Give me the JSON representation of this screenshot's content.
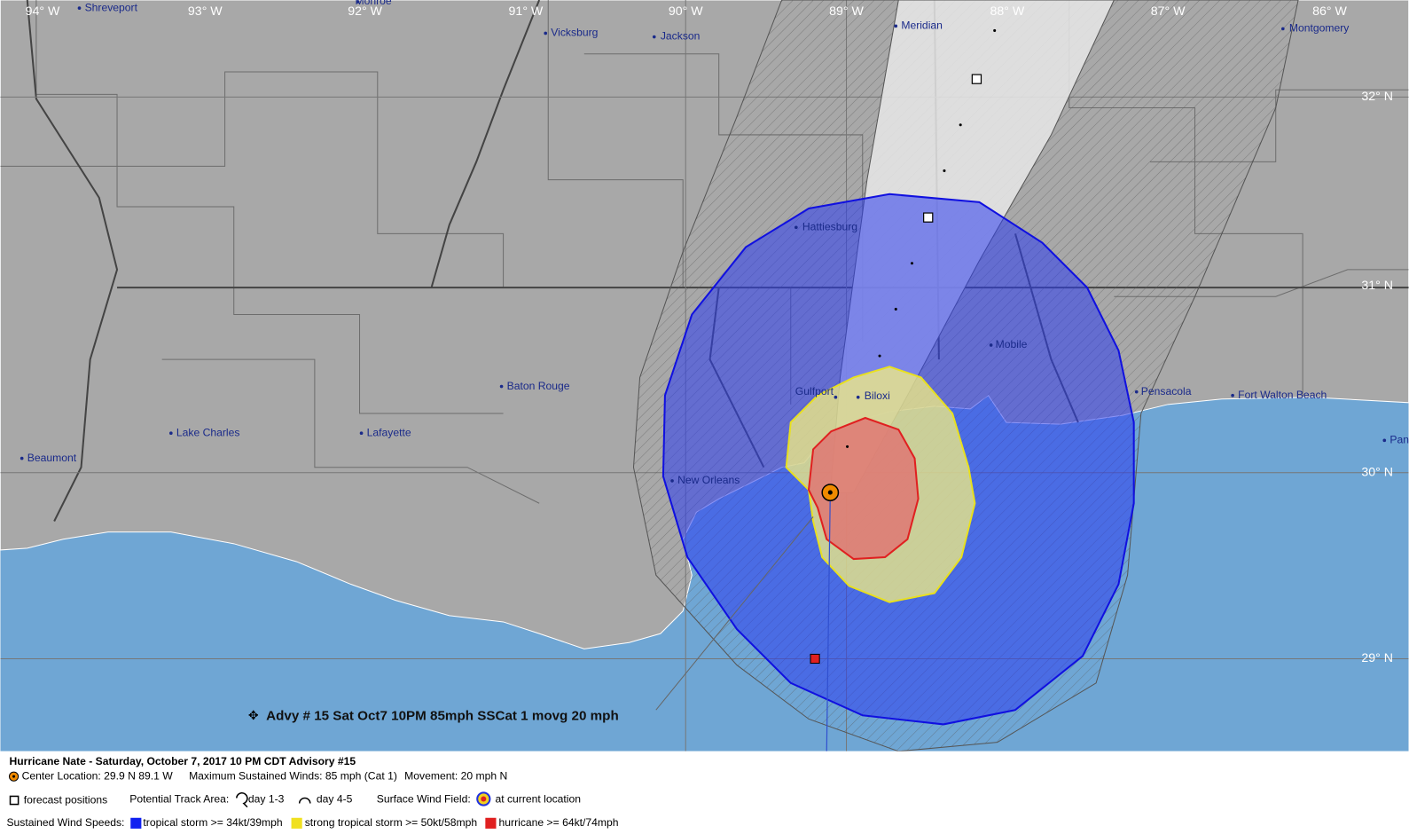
{
  "map": {
    "longitude_labels": [
      "94° W",
      "93° W",
      "92° W",
      "91° W",
      "90° W",
      "89° W",
      "88° W",
      "87° W",
      "86° W"
    ],
    "latitude_labels": [
      "32° N",
      "31° N",
      "30° N",
      "29° N"
    ],
    "cities": [
      "Shreveport",
      "Monroe",
      "Vicksburg",
      "Jackson",
      "Meridian",
      "Montgomery",
      "Hattiesburg",
      "Mobile",
      "Pensacola",
      "Fort Walton Beach",
      "Gulfport",
      "Biloxi",
      "Baton Rouge",
      "Lake Charles",
      "Lafayette",
      "Beaumont",
      "New Orleans",
      "Pan"
    ],
    "advisory_label": "Advy # 15 Sat Oct7 10PM  85mph SSCat 1 movg 20 mph"
  },
  "legend": {
    "title": "Hurricane Nate  -  Saturday, October 7, 2017  10 PM CDT   Advisory #15",
    "center_location": "Center Location: 29.9 N  89.1 W",
    "max_winds": "Maximum Sustained Winds: 85 mph (Cat 1)",
    "movement": "Movement: 20 mph N",
    "forecast_positions": "forecast positions",
    "track_area_label": "Potential Track Area:",
    "day_1_3": "day 1-3",
    "day_4_5": "day 4-5",
    "wind_field_label": "Surface Wind Field:",
    "current_location": "at current location",
    "wind_speeds_label": "Sustained Wind Speeds:",
    "tropical_storm": "tropical storm >= 34kt/39mph",
    "strong_tropical_storm": "strong tropical storm >= 50kt/58mph",
    "hurricane": "hurricane >= 64kt/74mph"
  }
}
